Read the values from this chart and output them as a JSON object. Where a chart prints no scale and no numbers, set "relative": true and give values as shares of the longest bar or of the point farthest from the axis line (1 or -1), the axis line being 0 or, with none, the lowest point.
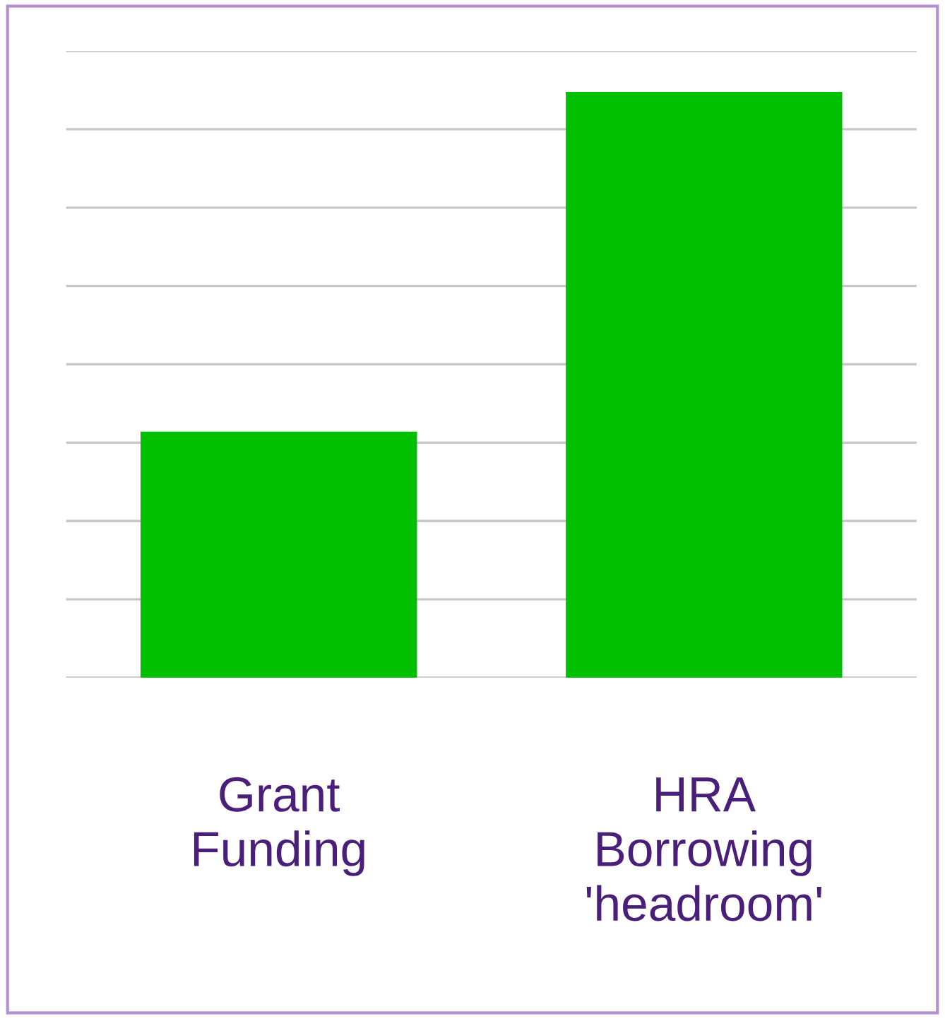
{
  "chart_data": {
    "type": "bar",
    "categories": [
      "Grant\nFunding",
      "HRA\nBorrowing\n'headroom'"
    ],
    "values": [
      0.42,
      1
    ],
    "color": "#00c000",
    "relative": true,
    "grid": "y"
  }
}
